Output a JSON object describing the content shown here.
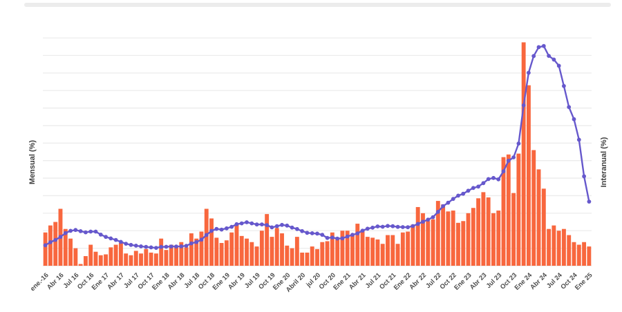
{
  "chart_data": {
    "type": "combo-bar-line",
    "title": "",
    "xlabel": "",
    "ylabel_left": "Mensual (%)",
    "ylabel_right": "Interanual (%)",
    "ylim_left": [
      0,
      26
    ],
    "ylim_right": [
      0,
      300
    ],
    "grid_step_left": 2,
    "grid_on": true,
    "legend": "none",
    "x_start": "ene.-16",
    "x_end": "Ene 25",
    "tick_every_months": 3,
    "x_tick_labels": [
      "ene.-16",
      "Abr 16",
      "Jul 16",
      "Oct 16",
      "Ene 17",
      "Abr 17",
      "Jul 17",
      "Oct 17",
      "Ene 18",
      "Abr 18",
      "Jul 18",
      "Oct 18",
      "Ene 19",
      "Abr 19",
      "Jul 19",
      "Oct 19",
      "Ene 20",
      "Abril 20",
      "jul 20",
      "Oct 20",
      "Ene 21",
      "Abr 21",
      "Jul 21",
      "Oct 21",
      "Ene 22",
      "Abr 22",
      "Jul 22",
      "Oct 22",
      "Ene 23",
      "Abr 23",
      "Jul 23",
      "Oct 23",
      "Ene 24",
      "Abr 24",
      "Jul 24",
      "Oct 24",
      "Ene 25"
    ],
    "series": [
      {
        "name": "Mensual (%)",
        "type": "bar",
        "axis": "left",
        "color": "#f8673e",
        "values": [
          3.8,
          4.6,
          5.0,
          6.5,
          4.2,
          3.1,
          2.0,
          0.2,
          1.1,
          2.4,
          1.6,
          1.2,
          1.3,
          2.1,
          2.4,
          2.6,
          1.4,
          1.2,
          1.7,
          1.4,
          1.9,
          1.5,
          1.4,
          3.1,
          1.8,
          2.4,
          2.3,
          2.7,
          2.1,
          3.7,
          3.1,
          3.9,
          6.5,
          5.4,
          3.2,
          2.6,
          2.9,
          3.8,
          4.7,
          3.4,
          3.1,
          2.7,
          2.2,
          4.0,
          5.9,
          3.3,
          4.3,
          3.7,
          2.3,
          2.0,
          3.3,
          1.5,
          1.5,
          2.2,
          1.9,
          2.7,
          2.8,
          3.8,
          3.2,
          4.0,
          4.0,
          3.6,
          4.8,
          4.1,
          3.3,
          3.2,
          3.0,
          2.5,
          3.5,
          3.5,
          2.5,
          3.8,
          3.9,
          4.7,
          6.7,
          6.0,
          5.1,
          5.3,
          7.4,
          7.0,
          6.2,
          6.3,
          4.9,
          5.1,
          6.0,
          6.6,
          7.7,
          8.4,
          7.8,
          6.0,
          6.3,
          12.4,
          12.7,
          8.3,
          12.8,
          25.5,
          20.6,
          13.2,
          11.0,
          8.8,
          4.2,
          4.6,
          4.0,
          4.2,
          3.5,
          2.7,
          2.4,
          2.7,
          2.2
        ]
      },
      {
        "name": "Interanual (%)",
        "type": "line-dots",
        "axis": "right",
        "color": "#6658cc",
        "values": [
          27.0,
          31.0,
          34.0,
          38.0,
          43.0,
          46.0,
          47.1,
          45.5,
          44.0,
          45.0,
          45.0,
          41.0,
          38.0,
          36.0,
          34.0,
          31.5,
          29.0,
          27.5,
          26.5,
          25.5,
          24.8,
          24.2,
          23.5,
          24.8,
          25.0,
          25.4,
          25.4,
          25.5,
          26.3,
          29.5,
          31.2,
          34.4,
          40.5,
          45.9,
          48.5,
          47.6,
          49.3,
          51.3,
          54.7,
          55.8,
          57.3,
          55.8,
          54.4,
          54.5,
          53.5,
          50.5,
          52.1,
          53.8,
          52.9,
          50.3,
          48.4,
          45.6,
          43.4,
          42.8,
          42.4,
          40.7,
          36.6,
          37.2,
          35.8,
          36.1,
          38.5,
          40.7,
          42.6,
          46.3,
          48.8,
          50.2,
          51.8,
          51.4,
          52.5,
          52.1,
          51.2,
          50.9,
          50.7,
          52.3,
          55.1,
          58.0,
          60.7,
          64.0,
          71.0,
          78.5,
          83.0,
          88.0,
          92.4,
          94.8,
          98.8,
          102.5,
          104.3,
          108.8,
          114.2,
          115.6,
          113.8,
          124.4,
          138.3,
          142.7,
          160.9,
          211.4,
          254.2,
          276.2,
          287.9,
          289.4,
          276.4,
          271.5,
          263.4,
          236.7,
          209.0,
          193.0,
          166.0,
          117.8,
          84.5
        ]
      }
    ]
  },
  "colors": {
    "bar": "#f8673e",
    "line": "#6658cc",
    "grid": "#ececec",
    "baseline": "#e6e6e6",
    "tick_label": "#4d4d4d",
    "axis_title": "#3f3f3f",
    "divider": "#ececec",
    "background": "#ffffff"
  }
}
